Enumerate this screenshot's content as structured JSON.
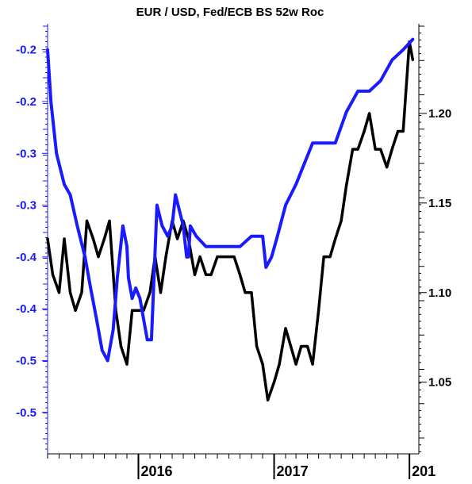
{
  "colors": {
    "background": "#ffffff",
    "axis": "#000000",
    "left_axis": "#1a1aff",
    "eurusd_line": "#000000",
    "balance_sheet_line": "#1a1aff"
  },
  "chart_data": {
    "type": "line",
    "title": "EUR / USD, Fed/ECB BS 52w Roc",
    "xlabel": "",
    "x_tick_labels": [
      "2016",
      "2017",
      "201"
    ],
    "x_ticks": [
      "2016-01-01",
      "2017-01-01",
      "2018-01-01"
    ],
    "x_range": [
      "2015-05-01",
      "2018-01-20"
    ],
    "left_axis": {
      "tick_labels": [
        "-0.2",
        "-0.2",
        "-0.3",
        "-0.3",
        "-0.4",
        "-0.4",
        "-0.5",
        "-0.5"
      ],
      "ylim": [
        -0.58,
        -0.165
      ],
      "tick_values": [
        -0.19,
        -0.24,
        -0.29,
        -0.34,
        -0.39,
        -0.44,
        -0.49,
        -0.54
      ]
    },
    "right_axis": {
      "tick_labels": [
        "1.05",
        "1.10",
        "1.15",
        "1.20"
      ],
      "tick_values": [
        1.05,
        1.1,
        1.15,
        1.2
      ],
      "ylim": [
        1.01,
        1.25
      ]
    },
    "grid": false,
    "legend": "none",
    "series": [
      {
        "axis": "right",
        "color": "#000000",
        "x": [
          "2015-05-01",
          "2015-05-15",
          "2015-06-01",
          "2015-06-15",
          "2015-07-01",
          "2015-07-15",
          "2015-08-01",
          "2015-08-15",
          "2015-09-01",
          "2015-09-15",
          "2015-10-01",
          "2015-10-15",
          "2015-11-01",
          "2015-11-15",
          "2015-12-01",
          "2015-12-15",
          "2016-01-01",
          "2016-01-15",
          "2016-02-01",
          "2016-02-15",
          "2016-03-01",
          "2016-03-15",
          "2016-04-01",
          "2016-04-15",
          "2016-05-01",
          "2016-05-15",
          "2016-06-01",
          "2016-06-15",
          "2016-07-01",
          "2016-07-15",
          "2016-08-01",
          "2016-08-15",
          "2016-09-01",
          "2016-09-15",
          "2016-10-01",
          "2016-10-15",
          "2016-11-01",
          "2016-11-15",
          "2016-12-01",
          "2016-12-15",
          "2017-01-01",
          "2017-01-15",
          "2017-02-01",
          "2017-02-15",
          "2017-03-01",
          "2017-03-15",
          "2017-04-01",
          "2017-04-15",
          "2017-05-01",
          "2017-05-15",
          "2017-06-01",
          "2017-06-15",
          "2017-07-01",
          "2017-07-15",
          "2017-08-01",
          "2017-08-15",
          "2017-09-01",
          "2017-09-15",
          "2017-10-01",
          "2017-10-15",
          "2017-11-01",
          "2017-11-15",
          "2017-12-01",
          "2017-12-15",
          "2018-01-01",
          "2018-01-10"
        ],
        "values": [
          1.13,
          1.11,
          1.1,
          1.13,
          1.1,
          1.09,
          1.1,
          1.14,
          1.13,
          1.12,
          1.13,
          1.14,
          1.09,
          1.07,
          1.06,
          1.09,
          1.09,
          1.09,
          1.1,
          1.12,
          1.1,
          1.12,
          1.14,
          1.13,
          1.14,
          1.13,
          1.11,
          1.12,
          1.11,
          1.11,
          1.12,
          1.12,
          1.12,
          1.12,
          1.11,
          1.1,
          1.1,
          1.07,
          1.06,
          1.04,
          1.05,
          1.06,
          1.08,
          1.07,
          1.06,
          1.07,
          1.07,
          1.06,
          1.09,
          1.12,
          1.12,
          1.13,
          1.14,
          1.16,
          1.18,
          1.18,
          1.19,
          1.2,
          1.18,
          1.18,
          1.17,
          1.18,
          1.19,
          1.19,
          1.24,
          1.23
        ]
      },
      {
        "axis": "left",
        "color": "#1a1aff",
        "x": [
          "2015-05-01",
          "2015-05-10",
          "2015-05-25",
          "2015-06-15",
          "2015-07-01",
          "2015-07-20",
          "2015-08-10",
          "2015-08-25",
          "2015-09-10",
          "2015-09-25",
          "2015-10-10",
          "2015-10-25",
          "2015-11-05",
          "2015-11-20",
          "2015-12-01",
          "2015-12-05",
          "2015-12-15",
          "2015-12-25",
          "2016-01-05",
          "2016-01-15",
          "2016-01-25",
          "2016-02-05",
          "2016-02-20",
          "2016-03-05",
          "2016-03-20",
          "2016-04-01",
          "2016-04-10",
          "2016-05-01",
          "2016-05-10",
          "2016-05-15",
          "2016-05-20",
          "2016-06-05",
          "2016-07-01",
          "2016-08-01",
          "2016-09-01",
          "2016-10-01",
          "2016-11-01",
          "2016-12-01",
          "2016-12-10",
          "2016-12-25",
          "2017-01-10",
          "2017-02-01",
          "2017-03-01",
          "2017-04-15",
          "2017-05-15",
          "2017-06-15",
          "2017-07-15",
          "2017-08-15",
          "2017-09-15",
          "2017-10-15",
          "2017-11-15",
          "2017-12-15",
          "2018-01-10"
        ],
        "values": [
          -0.19,
          -0.24,
          -0.29,
          -0.32,
          -0.33,
          -0.36,
          -0.39,
          -0.42,
          -0.45,
          -0.48,
          -0.49,
          -0.46,
          -0.41,
          -0.36,
          -0.38,
          -0.41,
          -0.43,
          -0.42,
          -0.43,
          -0.45,
          -0.47,
          -0.47,
          -0.34,
          -0.36,
          -0.37,
          -0.36,
          -0.33,
          -0.36,
          -0.39,
          -0.39,
          -0.36,
          -0.37,
          -0.38,
          -0.38,
          -0.38,
          -0.38,
          -0.37,
          -0.37,
          -0.4,
          -0.39,
          -0.37,
          -0.34,
          -0.32,
          -0.28,
          -0.28,
          -0.28,
          -0.25,
          -0.23,
          -0.23,
          -0.22,
          -0.2,
          -0.19,
          -0.18
        ]
      }
    ]
  }
}
